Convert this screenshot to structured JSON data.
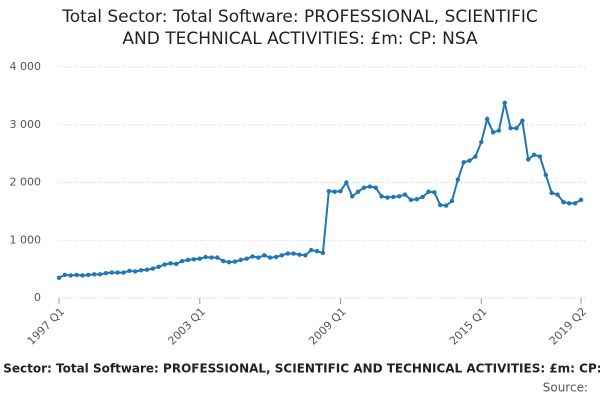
{
  "chart_data": {
    "type": "line",
    "title": [
      "Total Sector: Total Software: PROFESSIONAL, SCIENTIFIC",
      "AND TECHNICAL ACTIVITIES: £m: CP: NSA"
    ],
    "subtitle": "Total Sector: Total Software: PROFESSIONAL, SCIENTIFIC AND TECHNICAL ACTIVITIES: £m: CP: NSA",
    "source": "Source:",
    "categories": [
      "1997 Q1",
      null,
      null,
      null,
      null,
      null,
      null,
      null,
      null,
      null,
      null,
      null,
      null,
      null,
      null,
      null,
      null,
      null,
      null,
      null,
      null,
      null,
      null,
      null,
      "2003 Q1",
      null,
      null,
      null,
      null,
      null,
      null,
      null,
      null,
      null,
      null,
      null,
      null,
      null,
      null,
      null,
      null,
      null,
      null,
      null,
      null,
      null,
      null,
      null,
      "2009 Q1",
      null,
      null,
      null,
      null,
      null,
      null,
      null,
      null,
      null,
      null,
      null,
      null,
      null,
      null,
      null,
      null,
      null,
      null,
      null,
      null,
      null,
      null,
      null,
      "2015 Q1",
      null,
      null,
      null,
      null,
      null,
      null,
      null,
      null,
      null,
      null,
      null,
      null,
      null,
      null,
      null,
      null,
      "2019 Q2"
    ],
    "series": [
      {
        "color": "#1f77b4",
        "values": [
          350,
          400,
          390,
          400,
          390,
          400,
          410,
          410,
          430,
          440,
          440,
          440,
          470,
          460,
          480,
          490,
          510,
          540,
          580,
          600,
          590,
          640,
          660,
          670,
          680,
          710,
          700,
          700,
          640,
          620,
          630,
          660,
          680,
          720,
          700,
          740,
          700,
          710,
          740,
          770,
          770,
          750,
          740,
          830,
          810,
          780,
          1850,
          1840,
          1850,
          2000,
          1760,
          1840,
          1910,
          1930,
          1910,
          1760,
          1740,
          1750,
          1760,
          1790,
          1700,
          1710,
          1750,
          1840,
          1830,
          1610,
          1600,
          1680,
          2050,
          2350,
          2380,
          2450,
          2700,
          3100,
          2870,
          2900,
          3380,
          2940,
          2940,
          3070,
          2400,
          2480,
          2450,
          2130,
          1820,
          1790,
          1660,
          1640,
          1640,
          1700
        ]
      }
    ],
    "ylim": [
      0,
      4000
    ],
    "yticks": [
      0,
      {
        "value": 1000,
        "label": "1 000"
      },
      {
        "value": 2000,
        "label": "2 000"
      },
      {
        "value": 3000,
        "label": "3 000"
      },
      {
        "value": 4000,
        "label": "4 000"
      }
    ],
    "grid": true
  }
}
